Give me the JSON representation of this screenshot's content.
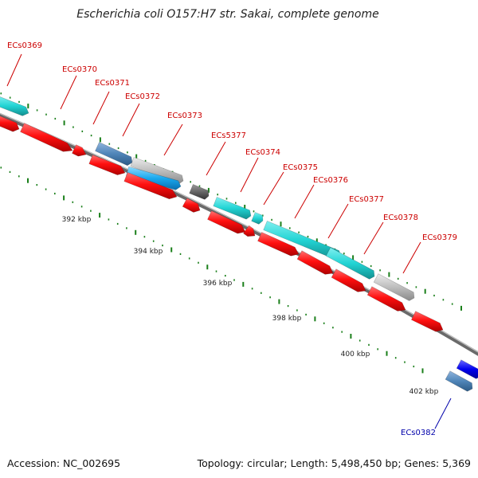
{
  "title": "Escherichia coli O157:H7 str. Sakai, complete genome",
  "footer": {
    "accession": "Accession: NC_002695",
    "topology": "Topology: circular; Length: 5,498,450 bp; Genes: 5,369"
  },
  "colors": {
    "gene_red": "#ff0000",
    "gene_cyan": "#22d4d4",
    "gene_steel_blue": "#4f85b8",
    "gene_gray": "#bbbbbb",
    "gene_dark_gray": "#666666",
    "gene_blue": "#0000ee",
    "tick_green": "#1a7f1a",
    "backbone": "#888888",
    "label_red": "#cc0000",
    "label_blue": "#0000aa"
  },
  "scale_labels": [
    "392 kbp",
    "394 kbp",
    "396 kbp",
    "398 kbp",
    "400 kbp",
    "402 kbp"
  ],
  "gene_labels": [
    "ECs0369",
    "ECs0370",
    "ECs0371",
    "ECs0372",
    "ECs0373",
    "ECs5377",
    "ECs0374",
    "ECs0375",
    "ECs0376",
    "ECs0377",
    "ECs0378",
    "ECs0379",
    "ECs0382"
  ]
}
